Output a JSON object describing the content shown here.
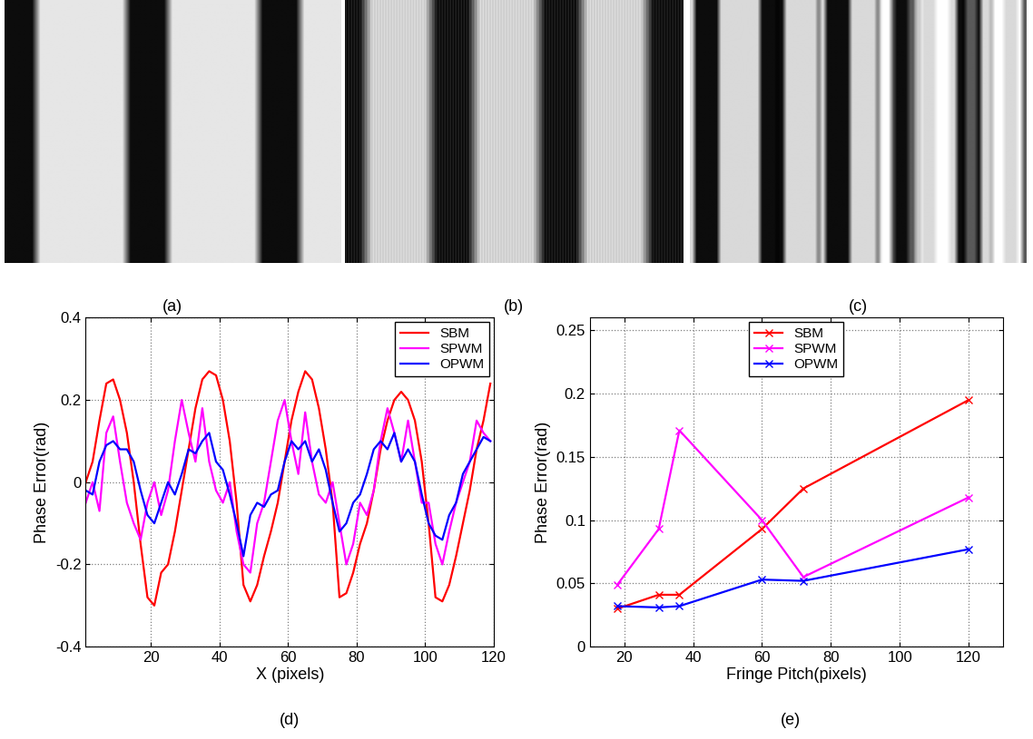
{
  "panels": [
    "(a)",
    "(b)",
    "(c)",
    "(d)",
    "(e)"
  ],
  "chart_data": [
    {
      "type": "line",
      "xlabel": "X (pixels)",
      "ylabel": "Phase Error(rad)",
      "xlim": [
        1,
        120
      ],
      "xticks": [
        20,
        40,
        60,
        80,
        100,
        120
      ],
      "ylim": [
        -0.4,
        0.4
      ],
      "yticks": [
        -0.4,
        -0.2,
        0,
        0.2,
        0.4
      ],
      "grid": true,
      "legend": "upper right",
      "x": [
        1,
        3,
        5,
        7,
        9,
        11,
        13,
        15,
        17,
        19,
        21,
        23,
        25,
        27,
        29,
        31,
        33,
        35,
        37,
        39,
        41,
        43,
        45,
        47,
        49,
        51,
        53,
        55,
        57,
        59,
        61,
        63,
        65,
        67,
        69,
        71,
        73,
        75,
        77,
        79,
        81,
        83,
        85,
        87,
        89,
        91,
        93,
        95,
        97,
        99,
        101,
        103,
        105,
        107,
        109,
        111,
        113,
        115,
        117,
        119
      ],
      "series": [
        {
          "name": "SBM",
          "color": "red",
          "values": [
            0.0,
            0.05,
            0.15,
            0.24,
            0.25,
            0.2,
            0.12,
            0.0,
            -0.15,
            -0.28,
            -0.3,
            -0.22,
            -0.2,
            -0.12,
            -0.02,
            0.08,
            0.18,
            0.25,
            0.27,
            0.26,
            0.2,
            0.1,
            -0.05,
            -0.25,
            -0.29,
            -0.25,
            -0.18,
            -0.12,
            -0.05,
            0.05,
            0.15,
            0.22,
            0.27,
            0.25,
            0.18,
            0.08,
            -0.05,
            -0.28,
            -0.27,
            -0.22,
            -0.15,
            -0.1,
            -0.02,
            0.08,
            0.15,
            0.2,
            0.22,
            0.2,
            0.15,
            0.05,
            -0.1,
            -0.28,
            -0.29,
            -0.25,
            -0.18,
            -0.1,
            -0.02,
            0.08,
            0.15,
            0.24
          ]
        },
        {
          "name": "SPWM",
          "color": "magenta",
          "values": [
            -0.05,
            0.0,
            -0.07,
            0.12,
            0.16,
            0.05,
            -0.05,
            -0.1,
            -0.14,
            -0.05,
            0.0,
            -0.08,
            -0.02,
            0.1,
            0.2,
            0.12,
            0.05,
            0.18,
            0.05,
            -0.02,
            -0.05,
            0.0,
            -0.12,
            -0.2,
            -0.22,
            -0.1,
            -0.05,
            0.05,
            0.15,
            0.2,
            0.1,
            0.02,
            0.17,
            0.05,
            -0.03,
            -0.05,
            0.0,
            -0.1,
            -0.2,
            -0.15,
            -0.05,
            -0.08,
            -0.02,
            0.1,
            0.18,
            0.12,
            0.05,
            0.15,
            0.05,
            -0.05,
            -0.05,
            -0.15,
            -0.2,
            -0.12,
            -0.05,
            0.0,
            0.05,
            0.15,
            0.12,
            0.1
          ]
        },
        {
          "name": "OPWM",
          "color": "blue",
          "values": [
            -0.02,
            -0.03,
            0.05,
            0.09,
            0.1,
            0.08,
            0.08,
            0.05,
            -0.02,
            -0.08,
            -0.1,
            -0.05,
            0.0,
            -0.03,
            0.02,
            0.08,
            0.07,
            0.1,
            0.12,
            0.05,
            0.03,
            -0.03,
            -0.1,
            -0.18,
            -0.08,
            -0.05,
            -0.06,
            -0.03,
            -0.02,
            0.05,
            0.1,
            0.08,
            0.1,
            0.05,
            0.08,
            0.03,
            -0.05,
            -0.12,
            -0.1,
            -0.05,
            -0.03,
            0.02,
            0.08,
            0.1,
            0.08,
            0.12,
            0.05,
            0.08,
            0.05,
            -0.03,
            -0.1,
            -0.13,
            -0.14,
            -0.08,
            -0.05,
            0.02,
            0.05,
            0.08,
            0.11,
            0.1
          ]
        }
      ]
    },
    {
      "type": "line",
      "xlabel": "Fringe Pitch(pixels)",
      "ylabel": "Phase Error(rad)",
      "xlim": [
        10,
        130
      ],
      "xticks": [
        20,
        40,
        60,
        80,
        100,
        120
      ],
      "ylim": [
        0,
        0.26
      ],
      "yticks": [
        0,
        0.05,
        0.1,
        0.15,
        0.2,
        0.25
      ],
      "grid": true,
      "legend": "upper center",
      "marker": "x",
      "x": [
        18,
        30,
        36,
        60,
        72,
        120
      ],
      "series": [
        {
          "name": "SBM",
          "color": "red",
          "values": [
            0.03,
            0.041,
            0.041,
            0.093,
            0.125,
            0.195
          ]
        },
        {
          "name": "SPWM",
          "color": "magenta",
          "values": [
            0.049,
            0.093,
            0.171,
            0.1,
            0.055,
            0.118
          ]
        },
        {
          "name": "OPWM",
          "color": "blue",
          "values": [
            0.032,
            0.031,
            0.032,
            0.053,
            0.052,
            0.077
          ]
        }
      ]
    }
  ]
}
